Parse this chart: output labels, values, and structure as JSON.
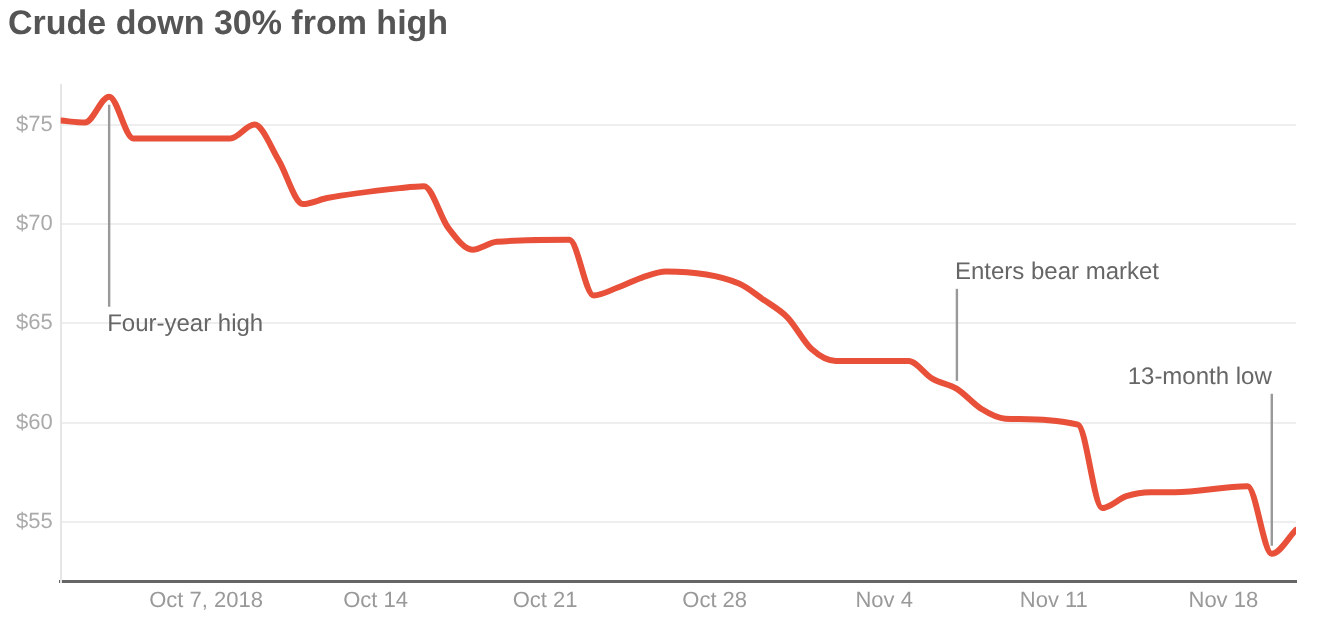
{
  "chart_data": {
    "type": "line",
    "title": "Crude down 30% from high",
    "x": [
      "2018-10-01",
      "2018-10-02",
      "2018-10-03",
      "2018-10-04",
      "2018-10-05",
      "2018-10-08",
      "2018-10-09",
      "2018-10-10",
      "2018-10-11",
      "2018-10-12",
      "2018-10-15",
      "2018-10-16",
      "2018-10-17",
      "2018-10-18",
      "2018-10-19",
      "2018-10-22",
      "2018-10-23",
      "2018-10-24",
      "2018-10-25",
      "2018-10-26",
      "2018-10-29",
      "2018-10-30",
      "2018-10-31",
      "2018-11-01",
      "2018-11-02",
      "2018-11-05",
      "2018-11-06",
      "2018-11-07",
      "2018-11-08",
      "2018-11-09",
      "2018-11-12",
      "2018-11-13",
      "2018-11-14",
      "2018-11-15",
      "2018-11-16",
      "2018-11-19",
      "2018-11-20",
      "2018-11-21"
    ],
    "series": [
      {
        "color": "#e8503a",
        "values": [
          75.2,
          75.1,
          76.4,
          74.3,
          74.3,
          74.3,
          75.0,
          73.2,
          71.0,
          71.3,
          71.8,
          71.9,
          69.8,
          68.7,
          69.1,
          69.2,
          66.4,
          66.8,
          67.3,
          67.6,
          67.0,
          66.2,
          65.3,
          63.7,
          63.1,
          63.1,
          62.2,
          61.7,
          60.7,
          60.2,
          59.9,
          55.7,
          56.3,
          56.5,
          56.5,
          56.8,
          53.4,
          54.6
        ]
      }
    ],
    "xlim": [
      "2018-10-01",
      "2018-11-21"
    ],
    "xticks": [
      {
        "value": "2018-10-07",
        "label": "Oct 7, 2018"
      },
      {
        "value": "2018-10-14",
        "label": "Oct 14"
      },
      {
        "value": "2018-10-21",
        "label": "Oct 21"
      },
      {
        "value": "2018-10-28",
        "label": "Oct 28"
      },
      {
        "value": "2018-11-04",
        "label": "Nov 4"
      },
      {
        "value": "2018-11-11",
        "label": "Nov 11"
      },
      {
        "value": "2018-11-18",
        "label": "Nov 18"
      }
    ],
    "ylim": [
      52,
      77
    ],
    "yticks": [
      {
        "value": 55,
        "label": "$55"
      },
      {
        "value": 60,
        "label": "$60"
      },
      {
        "value": 65,
        "label": "$65"
      },
      {
        "value": 70,
        "label": "$70"
      },
      {
        "value": 75,
        "label": "$75"
      }
    ],
    "grid": "y",
    "legend": false,
    "marker": "none",
    "line_style": "solid",
    "annotations": [
      {
        "text": "Four-year high",
        "x": "2018-10-03",
        "y": 76.4
      },
      {
        "text": "Enters bear market",
        "x": "2018-11-07",
        "y": 61.7
      },
      {
        "text": "13-month low",
        "x": "2018-11-20",
        "y": 53.4
      }
    ]
  }
}
